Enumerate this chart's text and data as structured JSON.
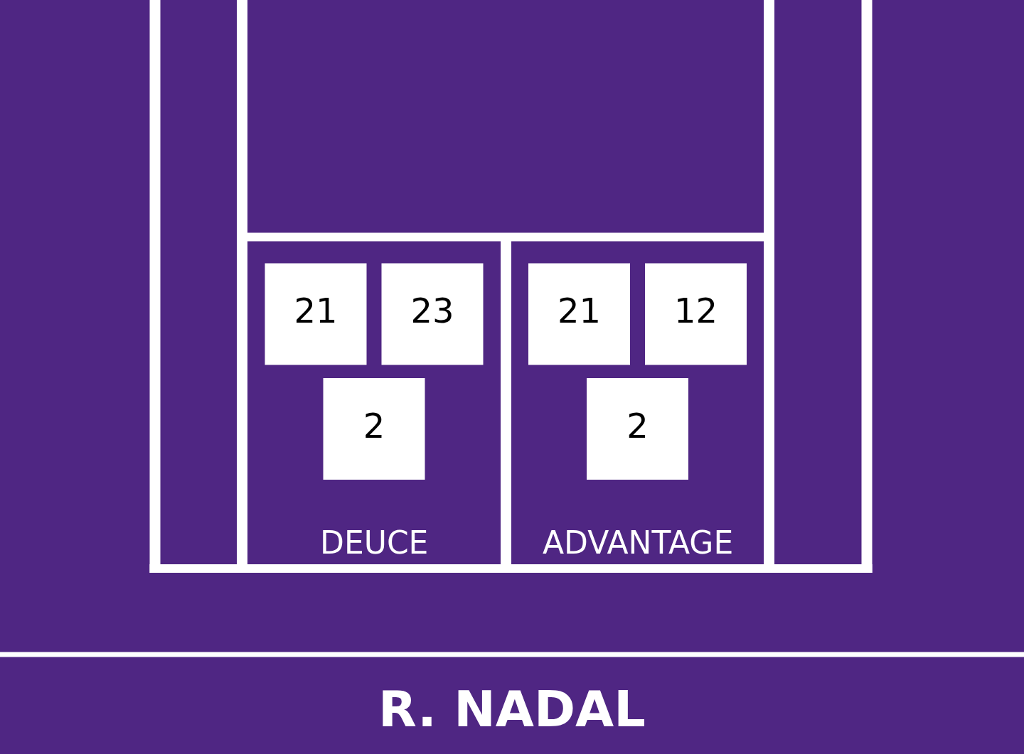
{
  "chart_data": {
    "type": "other",
    "xlabel": "R. NADAL",
    "categories": [
      "DEUCE",
      "ADVANTAGE"
    ],
    "series": [
      {
        "color": "#ffffff",
        "values": [
          21,
          21
        ]
      },
      {
        "color": "#ffffff",
        "values": [
          23,
          12
        ]
      },
      {
        "color": "#ffffff",
        "values": [
          2,
          2
        ]
      }
    ],
    "data_labels": true
  }
}
